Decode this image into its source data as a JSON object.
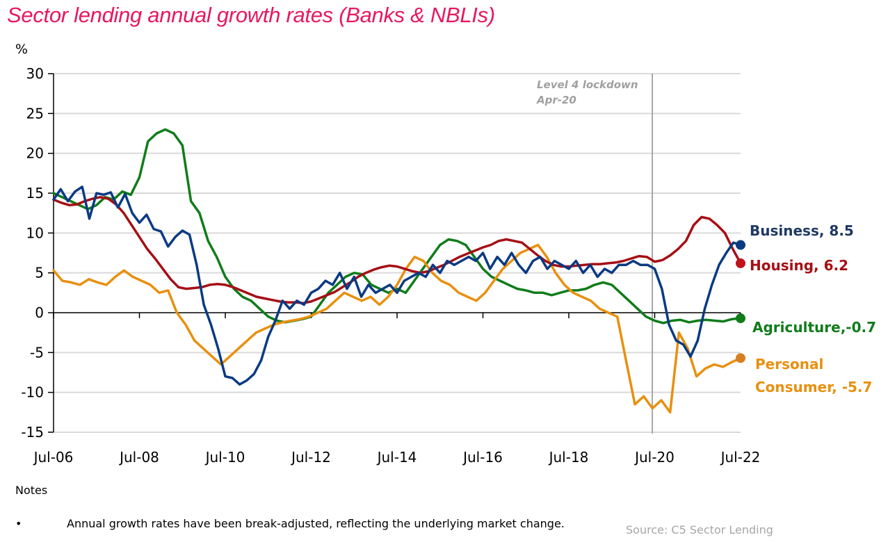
{
  "chart_data": {
    "type": "line",
    "title": "Sector lending annual growth rates (Banks & NBLIs)",
    "ylabel": "%",
    "xlabel": "",
    "ylim": [
      -15,
      30
    ],
    "yticks": [
      30,
      25,
      20,
      15,
      10,
      5,
      0,
      -5,
      -10,
      -15
    ],
    "xlim_months": [
      0,
      192
    ],
    "x_start": "Jul-06",
    "x_step_months": 2,
    "xticks": [
      {
        "label": "Jul-06",
        "month": 0
      },
      {
        "label": "Jul-08",
        "month": 24
      },
      {
        "label": "Jul-10",
        "month": 48
      },
      {
        "label": "Jul-12",
        "month": 72
      },
      {
        "label": "Jul-14",
        "month": 96
      },
      {
        "label": "Jul-16",
        "month": 120
      },
      {
        "label": "Jul-18",
        "month": 144
      },
      {
        "label": "Jul-20",
        "month": 168
      },
      {
        "label": "Jul-22",
        "month": 192
      }
    ],
    "grid": true,
    "annotation": {
      "lines": [
        "Level 4 lockdown",
        "Apr-20"
      ],
      "month": 165
    },
    "series": [
      {
        "name": "Business",
        "color": "#0a3a82",
        "end_label": "Business, 8.5",
        "end_value": 8.5,
        "values": [
          14.2,
          15.5,
          14.0,
          15.2,
          15.8,
          11.8,
          15.0,
          14.8,
          15.1,
          13.2,
          14.9,
          12.5,
          11.3,
          12.3,
          10.5,
          10.2,
          8.3,
          9.5,
          10.3,
          9.8,
          6.0,
          1.0,
          -1.5,
          -4.5,
          -8.0,
          -8.2,
          -9.0,
          -8.5,
          -7.7,
          -6.0,
          -3.0,
          -1.0,
          1.5,
          0.5,
          1.5,
          1.0,
          2.5,
          3.0,
          4.0,
          3.5,
          5.0,
          3.0,
          4.5,
          2.0,
          3.5,
          2.5,
          3.0,
          3.5,
          2.5,
          4.0,
          4.5,
          5.0,
          4.5,
          6.0,
          5.0,
          6.5,
          6.0,
          6.5,
          7.0,
          6.5,
          7.5,
          5.5,
          7.0,
          6.0,
          7.5,
          6.0,
          5.0,
          6.5,
          7.0,
          5.5,
          6.5,
          6.0,
          5.5,
          6.5,
          5.0,
          6.0,
          4.5,
          5.5,
          5.0,
          6.0,
          6.0,
          6.5,
          6.0,
          6.0,
          5.5,
          3.0,
          -1.5,
          -3.5,
          -4.0,
          -5.5,
          -3.5,
          0.5,
          3.5,
          6.0,
          7.5,
          8.8,
          8.5
        ]
      },
      {
        "name": "Housing",
        "color": "#a50f15",
        "end_label": "Housing, 6.2",
        "end_value": 6.2,
        "values": [
          14.2,
          13.8,
          13.5,
          13.6,
          14.0,
          14.3,
          14.5,
          14.3,
          13.6,
          12.5,
          11.0,
          9.5,
          8.0,
          6.8,
          5.5,
          4.2,
          3.2,
          3.0,
          3.1,
          3.2,
          3.5,
          3.6,
          3.5,
          3.2,
          2.8,
          2.4,
          2.0,
          1.8,
          1.6,
          1.4,
          1.3,
          1.3,
          1.2,
          1.4,
          1.8,
          2.2,
          2.6,
          3.2,
          3.8,
          4.5,
          5.0,
          5.4,
          5.7,
          5.9,
          5.8,
          5.5,
          5.2,
          5.0,
          5.2,
          5.6,
          6.0,
          6.5,
          7.0,
          7.4,
          7.8,
          8.2,
          8.5,
          9.0,
          9.2,
          9.0,
          8.8,
          8.0,
          7.2,
          6.5,
          6.0,
          5.8,
          5.8,
          5.9,
          6.0,
          6.1,
          6.1,
          6.2,
          6.3,
          6.5,
          6.8,
          7.1,
          7.0,
          6.4,
          6.6,
          7.2,
          8.0,
          9.0,
          11.0,
          12.0,
          11.8,
          11.0,
          10.0,
          8.0,
          6.2
        ]
      },
      {
        "name": "Agriculture",
        "color": "#107c1a",
        "end_label": "Agriculture,-0.7",
        "end_value": -0.7,
        "values": [
          15.0,
          14.5,
          14.0,
          13.5,
          13.0,
          13.5,
          14.5,
          14.2,
          15.2,
          14.8,
          17.0,
          21.5,
          22.5,
          23.0,
          22.5,
          21.0,
          14.0,
          12.5,
          9.0,
          7.0,
          4.5,
          3.0,
          2.0,
          1.5,
          0.5,
          -0.5,
          -1.0,
          -1.2,
          -1.0,
          -0.8,
          -0.5,
          1.0,
          2.5,
          3.5,
          4.5,
          5.0,
          4.8,
          3.5,
          3.0,
          2.5,
          3.0,
          2.5,
          4.0,
          5.5,
          7.0,
          8.5,
          9.2,
          9.0,
          8.5,
          7.0,
          5.5,
          4.5,
          4.0,
          3.5,
          3.0,
          2.8,
          2.5,
          2.5,
          2.2,
          2.5,
          2.8,
          2.8,
          3.0,
          3.5,
          3.8,
          3.5,
          2.5,
          1.5,
          0.5,
          -0.5,
          -1.0,
          -1.3,
          -1.0,
          -0.9,
          -1.2,
          -1.0,
          -0.9,
          -1.0,
          -1.1,
          -0.8,
          -0.7
        ]
      },
      {
        "name": "Personal Consumer",
        "color": "#e8900f",
        "end_label": [
          "Personal",
          "Consumer, -5.7"
        ],
        "end_value": -5.7,
        "values": [
          5.3,
          4.0,
          3.8,
          3.5,
          4.2,
          3.8,
          3.5,
          4.5,
          5.3,
          4.5,
          4.0,
          3.5,
          2.5,
          2.8,
          0.0,
          -1.5,
          -3.5,
          -4.5,
          -5.5,
          -6.5,
          -5.5,
          -4.5,
          -3.5,
          -2.5,
          -2.0,
          -1.5,
          -1.2,
          -1.0,
          -0.8,
          -0.5,
          0.0,
          0.5,
          1.5,
          2.5,
          2.0,
          1.5,
          2.0,
          1.0,
          2.0,
          3.5,
          5.5,
          7.0,
          6.5,
          5.0,
          4.0,
          3.5,
          2.5,
          2.0,
          1.5,
          2.5,
          4.0,
          5.5,
          6.5,
          7.5,
          8.0,
          8.5,
          7.0,
          5.0,
          3.5,
          2.5,
          2.0,
          1.5,
          0.5,
          0.0,
          -0.5,
          -6.0,
          -11.5,
          -10.5,
          -12.0,
          -11.0,
          -12.5,
          -2.5,
          -4.5,
          -8.0,
          -7.0,
          -6.5,
          -6.8,
          -6.2,
          -5.7
        ]
      }
    ]
  },
  "notes": {
    "heading": "Notes",
    "bullet": "•",
    "items": [
      "Annual growth rates have been break-adjusted, reflecting the underlying market change."
    ]
  },
  "source": "Source: C5 Sector Lending"
}
